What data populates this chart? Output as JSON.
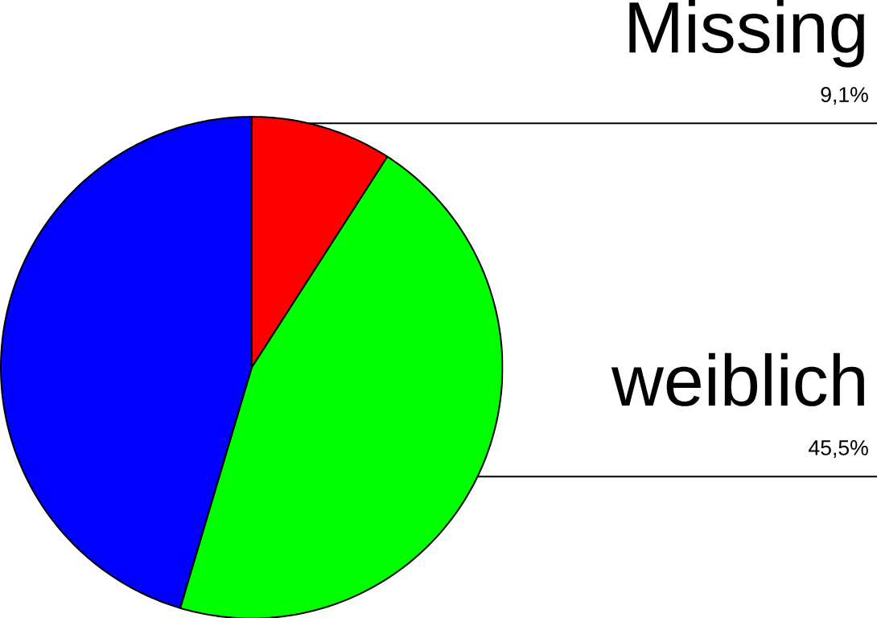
{
  "chart_data": {
    "type": "pie",
    "categories": [
      "Missing",
      "weiblich",
      null
    ],
    "values": [
      9.1,
      45.5,
      45.4
    ],
    "colors": [
      "#ff0000",
      "#00ff00",
      "#0000ff"
    ],
    "value_labels": [
      "9,1%",
      "45,5%",
      null
    ]
  }
}
